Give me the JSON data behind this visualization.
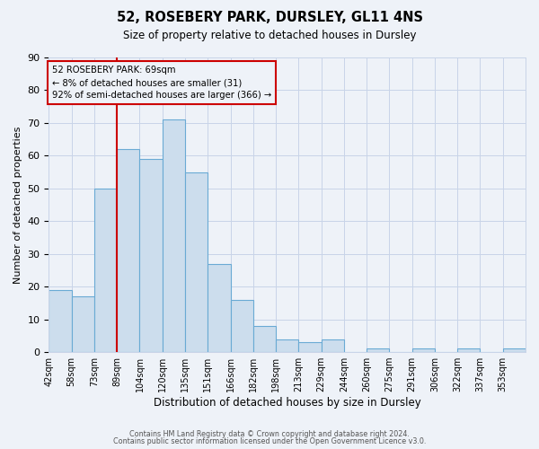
{
  "title": "52, ROSEBERY PARK, DURSLEY, GL11 4NS",
  "subtitle": "Size of property relative to detached houses in Dursley",
  "xlabel": "Distribution of detached houses by size in Dursley",
  "ylabel": "Number of detached properties",
  "footer_line1": "Contains HM Land Registry data © Crown copyright and database right 2024.",
  "footer_line2": "Contains public sector information licensed under the Open Government Licence v3.0.",
  "bin_labels": [
    "42sqm",
    "58sqm",
    "73sqm",
    "89sqm",
    "104sqm",
    "120sqm",
    "135sqm",
    "151sqm",
    "166sqm",
    "182sqm",
    "198sqm",
    "213sqm",
    "229sqm",
    "244sqm",
    "260sqm",
    "275sqm",
    "291sqm",
    "306sqm",
    "322sqm",
    "337sqm",
    "353sqm"
  ],
  "bar_heights": [
    19,
    17,
    50,
    62,
    59,
    71,
    55,
    27,
    16,
    8,
    4,
    3,
    4,
    0,
    1,
    0,
    1,
    0,
    1,
    0,
    1
  ],
  "bar_color": "#ccdded",
  "bar_edge_color": "#6aaad4",
  "ylim": [
    0,
    90
  ],
  "yticks": [
    0,
    10,
    20,
    30,
    40,
    50,
    60,
    70,
    80,
    90
  ],
  "red_line_bin": 2,
  "annotation_text_line1": "52 ROSEBERY PARK: 69sqm",
  "annotation_text_line2": "← 8% of detached houses are smaller (31)",
  "annotation_text_line3": "92% of semi-detached houses are larger (366) →",
  "annotation_box_color": "#cc0000",
  "grid_color": "#c8d4e8",
  "bg_color": "#eef2f8"
}
